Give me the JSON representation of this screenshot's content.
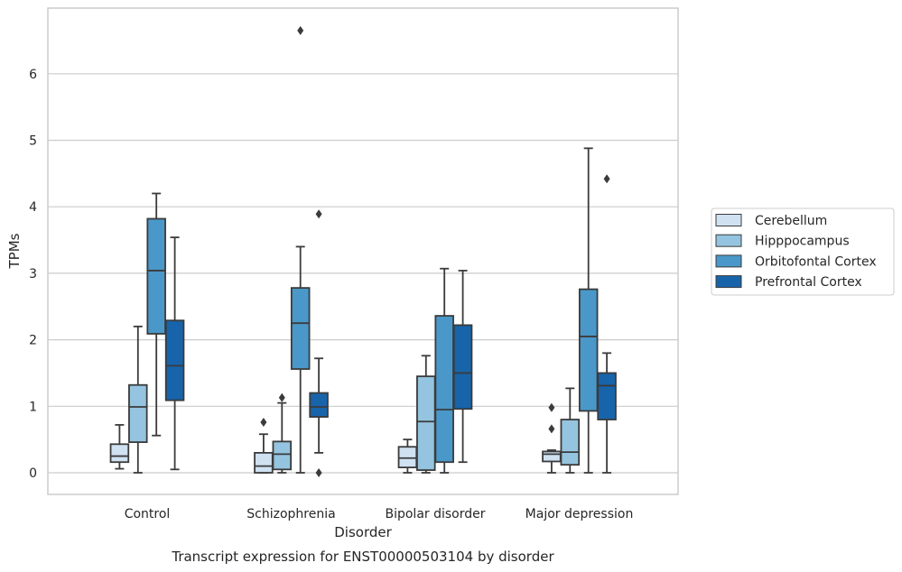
{
  "chart_data": {
    "type": "box",
    "title": "Transcript expression for ENST00000503104 by disorder",
    "xlabel": "Disorder",
    "ylabel": "TPMs",
    "ylim": [
      -0.32,
      7.0
    ],
    "yticks": [
      0,
      1,
      2,
      3,
      4,
      5,
      6
    ],
    "grid": true,
    "legend_position": "right",
    "categories": [
      "Control",
      "Schizophrenia",
      "Bipolar disorder",
      "Major depression"
    ],
    "series": [
      {
        "name": "Cerebellum",
        "color": "#d0e1f2",
        "boxes": [
          {
            "min": 0.06,
            "q1": 0.16,
            "median": 0.25,
            "q3": 0.43,
            "max": 0.72,
            "outliers": []
          },
          {
            "min": 0.0,
            "q1": 0.0,
            "median": 0.1,
            "q3": 0.3,
            "max": 0.58,
            "outliers": [
              0.76
            ]
          },
          {
            "min": 0.0,
            "q1": 0.08,
            "median": 0.22,
            "q3": 0.39,
            "max": 0.5,
            "outliers": []
          },
          {
            "min": 0.0,
            "q1": 0.17,
            "median": 0.28,
            "q3": 0.32,
            "max": 0.34,
            "outliers": [
              0.66,
              0.98
            ]
          }
        ]
      },
      {
        "name": "Hipppocampus",
        "color": "#94c4df",
        "boxes": [
          {
            "min": 0.0,
            "q1": 0.46,
            "median": 0.99,
            "q3": 1.32,
            "max": 2.2,
            "outliers": []
          },
          {
            "min": 0.0,
            "q1": 0.05,
            "median": 0.28,
            "q3": 0.47,
            "max": 1.05,
            "outliers": [
              1.13
            ]
          },
          {
            "min": 0.0,
            "q1": 0.04,
            "median": 0.77,
            "q3": 1.45,
            "max": 1.76,
            "outliers": []
          },
          {
            "min": 0.0,
            "q1": 0.12,
            "median": 0.31,
            "q3": 0.8,
            "max": 1.27,
            "outliers": []
          }
        ]
      },
      {
        "name": "Orbitofontal Cortex",
        "color": "#4a98c9",
        "boxes": [
          {
            "min": 0.56,
            "q1": 2.09,
            "median": 3.04,
            "q3": 3.82,
            "max": 4.2,
            "outliers": []
          },
          {
            "min": 0.0,
            "q1": 1.56,
            "median": 2.25,
            "q3": 2.78,
            "max": 3.4,
            "outliers": [
              6.65
            ]
          },
          {
            "min": 0.0,
            "q1": 0.16,
            "median": 0.95,
            "q3": 2.36,
            "max": 3.07,
            "outliers": []
          },
          {
            "min": 0.0,
            "q1": 0.93,
            "median": 2.05,
            "q3": 2.76,
            "max": 4.88,
            "outliers": []
          }
        ]
      },
      {
        "name": "Prefrontal Cortex",
        "color": "#1764ab",
        "boxes": [
          {
            "min": 0.05,
            "q1": 1.09,
            "median": 1.61,
            "q3": 2.29,
            "max": 3.54,
            "outliers": []
          },
          {
            "min": 0.3,
            "q1": 0.84,
            "median": 0.99,
            "q3": 1.2,
            "max": 1.72,
            "outliers": [
              3.89,
              0.0
            ]
          },
          {
            "min": 0.16,
            "q1": 0.96,
            "median": 1.5,
            "q3": 2.22,
            "max": 3.04,
            "outliers": []
          },
          {
            "min": 0.0,
            "q1": 0.8,
            "median": 1.31,
            "q3": 1.5,
            "max": 1.8,
            "outliers": [
              4.42
            ]
          }
        ]
      }
    ]
  }
}
